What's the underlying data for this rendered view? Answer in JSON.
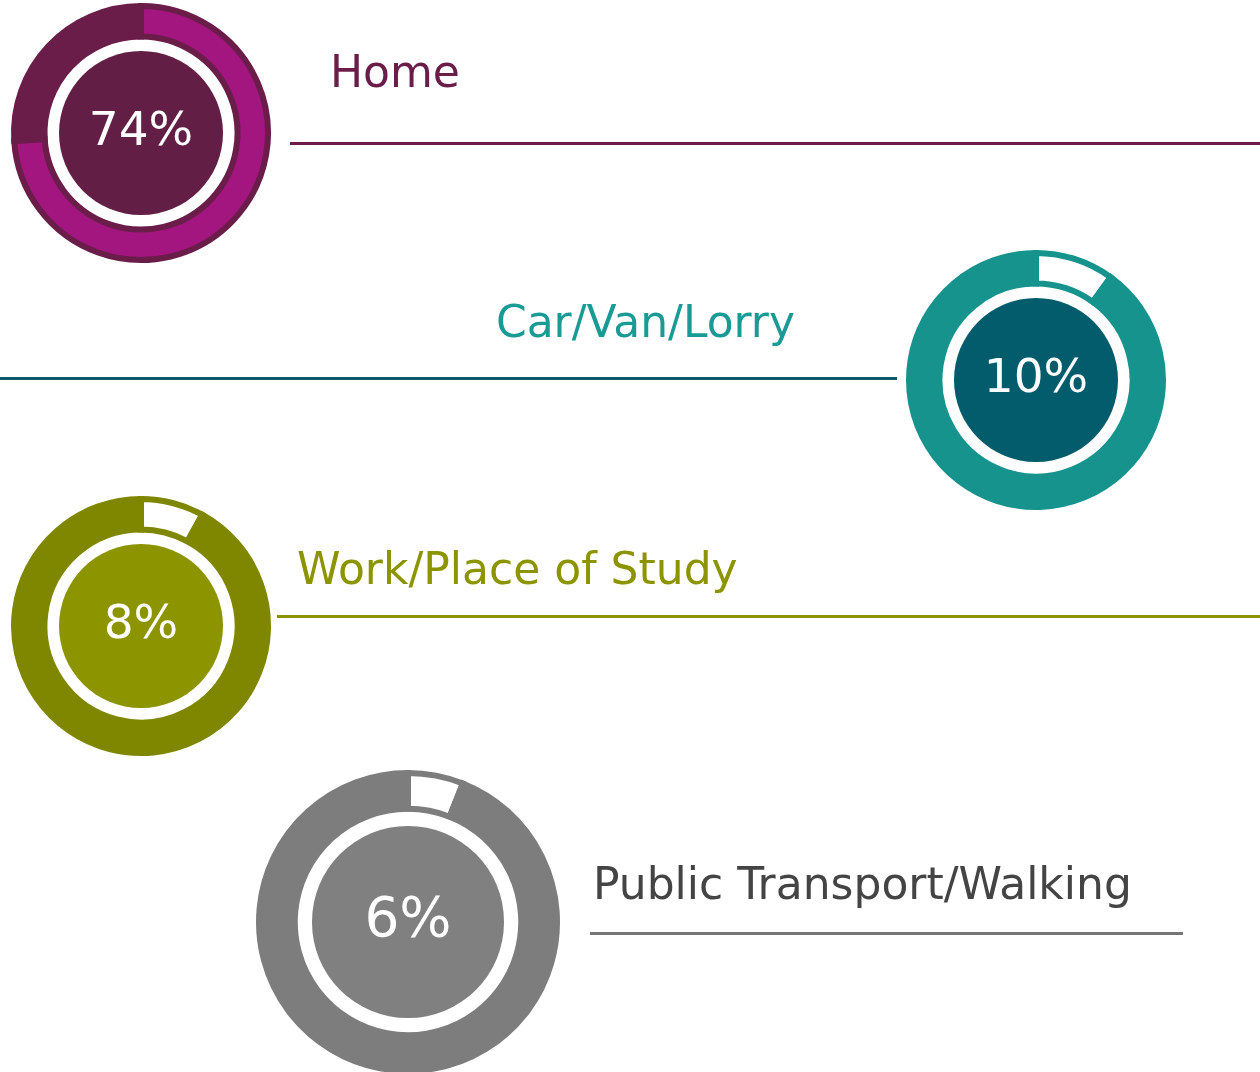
{
  "chart_data": [
    {
      "type": "donut",
      "title": "Home",
      "categories": [
        null,
        null
      ],
      "values": [
        74,
        26
      ],
      "colors": [
        "#a3157f",
        "#6b1d4a"
      ],
      "value_labels": [
        "74%",
        null
      ]
    },
    {
      "type": "donut",
      "title": "Car/Van/Lorry",
      "categories": [
        null,
        null
      ],
      "values": [
        10,
        90
      ],
      "colors": [
        "#ffffff",
        "#17938d"
      ],
      "value_labels": [
        "10%",
        null
      ]
    },
    {
      "type": "donut",
      "title": "Work/Place of Study",
      "categories": [
        null,
        null
      ],
      "values": [
        8,
        92
      ],
      "colors": [
        "#ffffff",
        "#7f8700"
      ],
      "value_labels": [
        "8%",
        null
      ]
    },
    {
      "type": "donut",
      "title": "Public Transport/Walking",
      "categories": [
        null,
        null
      ],
      "values": [
        6,
        94
      ],
      "colors": [
        "#ffffff",
        "#7d7d7d"
      ],
      "value_labels": [
        "6%",
        null
      ]
    }
  ]
}
